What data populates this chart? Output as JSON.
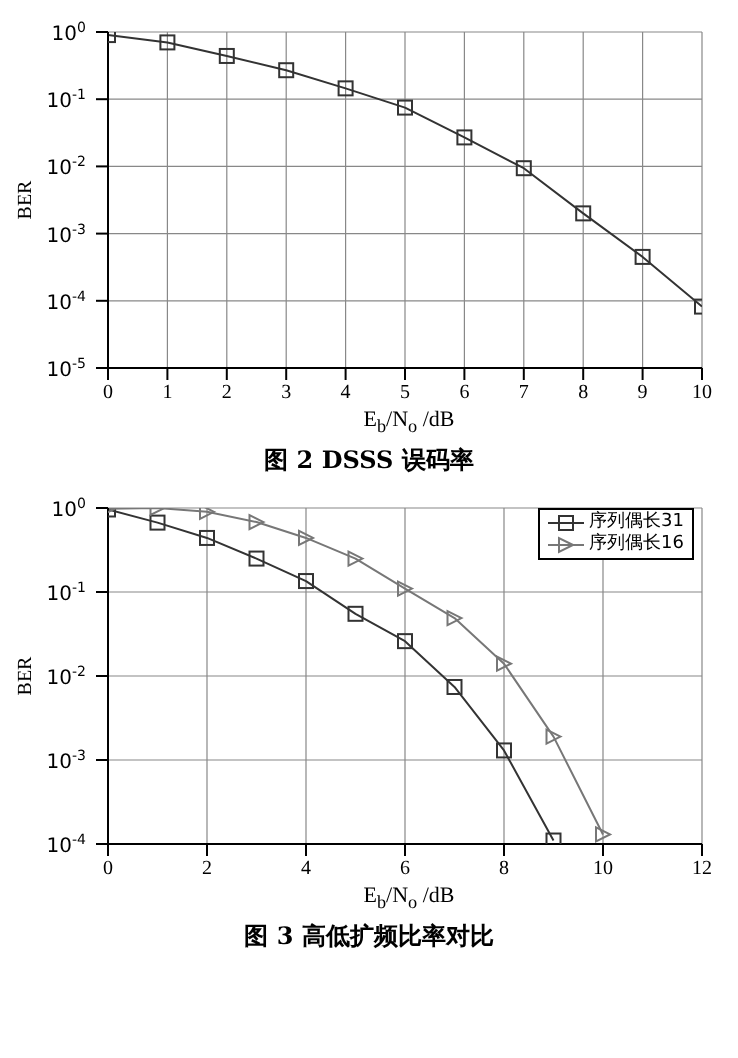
{
  "chart_data": [
    {
      "type": "line",
      "title": "图 2  DSSS 误码率",
      "xlabel": "E$_{b}$/N$_{o}$ /dB",
      "ylabel": "BER",
      "log": "y",
      "grid": true,
      "marker": "square",
      "x": [
        0,
        1,
        2,
        3,
        4,
        5,
        6,
        7,
        8,
        9,
        10
      ],
      "series": [
        {
          "color": "#333333",
          "values": [
            0.9,
            0.7,
            0.44,
            0.27,
            0.145,
            0.075,
            0.027,
            0.0094,
            0.002,
            0.00045,
            8.2e-05
          ]
        }
      ],
      "xlim": [
        0,
        10
      ],
      "xticks": [
        0,
        1,
        2,
        3,
        4,
        5,
        6,
        7,
        8,
        9,
        10
      ],
      "ylim": [
        1e-05,
        1
      ],
      "yticks": [
        {
          "value": 1e-05,
          "label": "10$^{-5}$"
        },
        {
          "value": 0.0001,
          "label": "10$^{-4}$"
        },
        {
          "value": 0.001,
          "label": "10$^{-3}$"
        },
        {
          "value": 0.01,
          "label": "10$^{-2}$"
        },
        {
          "value": 0.1,
          "label": "10$^{-1}$"
        },
        {
          "value": 1,
          "label": "10$^{0}$"
        }
      ]
    },
    {
      "type": "line",
      "title": "图 3  高低扩频比率对比",
      "xlabel": "E$_{b}$/N$_{o}$ /dB",
      "ylabel": "BER",
      "log": "y",
      "grid": true,
      "legend": "top right",
      "x": [
        0,
        1,
        2,
        3,
        4,
        5,
        6,
        7,
        8,
        9,
        10
      ],
      "series": [
        {
          "name": "序列偶长31",
          "color": "#333333",
          "marker": "square",
          "values": [
            0.96,
            0.67,
            0.44,
            0.25,
            0.135,
            0.055,
            0.026,
            0.0074,
            0.0013,
            0.00011,
            null
          ]
        },
        {
          "name": "序列偶长16",
          "color": "#777777",
          "marker": "triangle",
          "values": [
            0.98,
            1,
            0.9,
            0.68,
            0.44,
            0.25,
            0.11,
            0.049,
            0.014,
            0.0019,
            0.00013
          ]
        }
      ],
      "xlim": [
        0,
        12
      ],
      "xticks": [
        0,
        2,
        4,
        6,
        8,
        10,
        12
      ],
      "ylim": [
        0.0001,
        1
      ],
      "yticks": [
        {
          "value": 0.0001,
          "label": "10$^{-4}$"
        },
        {
          "value": 0.001,
          "label": "10$^{-3}$"
        },
        {
          "value": 0.01,
          "label": "10$^{-2}$"
        },
        {
          "value": 0.1,
          "label": "10$^{-1}$"
        },
        {
          "value": 1,
          "label": "10$^{0}$"
        }
      ]
    }
  ]
}
